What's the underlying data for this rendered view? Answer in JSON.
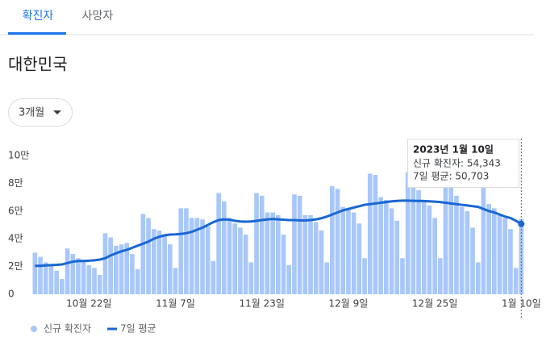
{
  "tabs": [
    "확진자",
    "사망자"
  ],
  "heading": "대한민국",
  "dropdown": "3개월",
  "chart_data": {
    "type": "bar",
    "categories": [
      null,
      null,
      null,
      null,
      null,
      null,
      null,
      null,
      null,
      null,
      "10월 22일",
      null,
      null,
      null,
      null,
      null,
      null,
      null,
      null,
      null,
      null,
      null,
      null,
      null,
      null,
      null,
      "11월 7일",
      null,
      null,
      null,
      null,
      null,
      null,
      null,
      null,
      null,
      null,
      null,
      null,
      null,
      null,
      null,
      "11월 23일",
      null,
      null,
      null,
      null,
      null,
      null,
      null,
      null,
      null,
      null,
      null,
      null,
      null,
      null,
      null,
      "12월 9일",
      null,
      null,
      null,
      null,
      null,
      null,
      null,
      null,
      null,
      null,
      null,
      null,
      null,
      null,
      null,
      "12월 25일",
      null,
      null,
      null,
      null,
      null,
      null,
      null,
      null,
      null,
      null,
      null,
      null,
      null,
      null,
      null,
      "1월 10일"
    ],
    "series": [
      {
        "name": "신규 확진자",
        "type": "bar",
        "color": "#a8c7fa",
        "values": [
          30000,
          27000,
          23000,
          21000,
          17000,
          11000,
          33000,
          29000,
          26000,
          24000,
          21000,
          19000,
          14000,
          44000,
          41000,
          35000,
          36000,
          37000,
          29000,
          18000,
          58000,
          55000,
          47000,
          46000,
          43000,
          36000,
          19000,
          62000,
          62000,
          55000,
          55000,
          54000,
          49000,
          24000,
          73000,
          67000,
          55000,
          51000,
          48000,
          43000,
          23000,
          73000,
          71000,
          59000,
          59000,
          57000,
          43000,
          21000,
          72000,
          71000,
          57000,
          57000,
          52000,
          46000,
          23000,
          78000,
          76000,
          63000,
          62000,
          59000,
          51000,
          26000,
          87000,
          86000,
          70000,
          68000,
          62000,
          53000,
          26000,
          88000,
          88000,
          75000,
          68000,
          64000,
          55000,
          26000,
          88000,
          81000,
          71000,
          63000,
          60000,
          48000,
          23000,
          81000,
          65000,
          62000,
          57000,
          55000,
          47000,
          19000,
          54343
        ]
      },
      {
        "name": "7일 평균",
        "type": "line",
        "color": "#1967d2",
        "values": [
          20500,
          20500,
          20800,
          21000,
          21200,
          21500,
          22500,
          23500,
          24000,
          24000,
          24200,
          24500,
          25000,
          26000,
          28000,
          29500,
          31000,
          32000,
          33500,
          35000,
          36500,
          38000,
          40000,
          41500,
          42500,
          43000,
          43200,
          43500,
          44000,
          45000,
          46500,
          48000,
          50000,
          52000,
          53500,
          54000,
          53800,
          53000,
          52500,
          52300,
          52500,
          53000,
          53500,
          54000,
          54300,
          54000,
          53800,
          53500,
          53500,
          53300,
          53200,
          53500,
          54000,
          54800,
          56000,
          57500,
          59000,
          60500,
          61500,
          62500,
          63500,
          64500,
          65000,
          65500,
          66000,
          66500,
          67000,
          67300,
          67500,
          67500,
          67400,
          67300,
          67200,
          67000,
          66800,
          66500,
          66000,
          65500,
          65000,
          64500,
          64000,
          63500,
          63000,
          61500,
          60000,
          59000,
          57500,
          56000,
          55000,
          53000,
          50703
        ]
      }
    ],
    "ylim": [
      0,
      100000
    ],
    "yticks": [
      0,
      {
        "value": 20000,
        "label": "2만"
      },
      {
        "value": 40000,
        "label": "4만"
      },
      {
        "value": 60000,
        "label": "6만"
      },
      {
        "value": 80000,
        "label": "8만"
      },
      {
        "value": 100000,
        "label": "10만"
      }
    ],
    "grid": false,
    "tooltip": {
      "date": "2023년 1월 10일",
      "rows": [
        "신규 확진자: 54,343",
        "7일 평균: 50,703"
      ]
    }
  }
}
